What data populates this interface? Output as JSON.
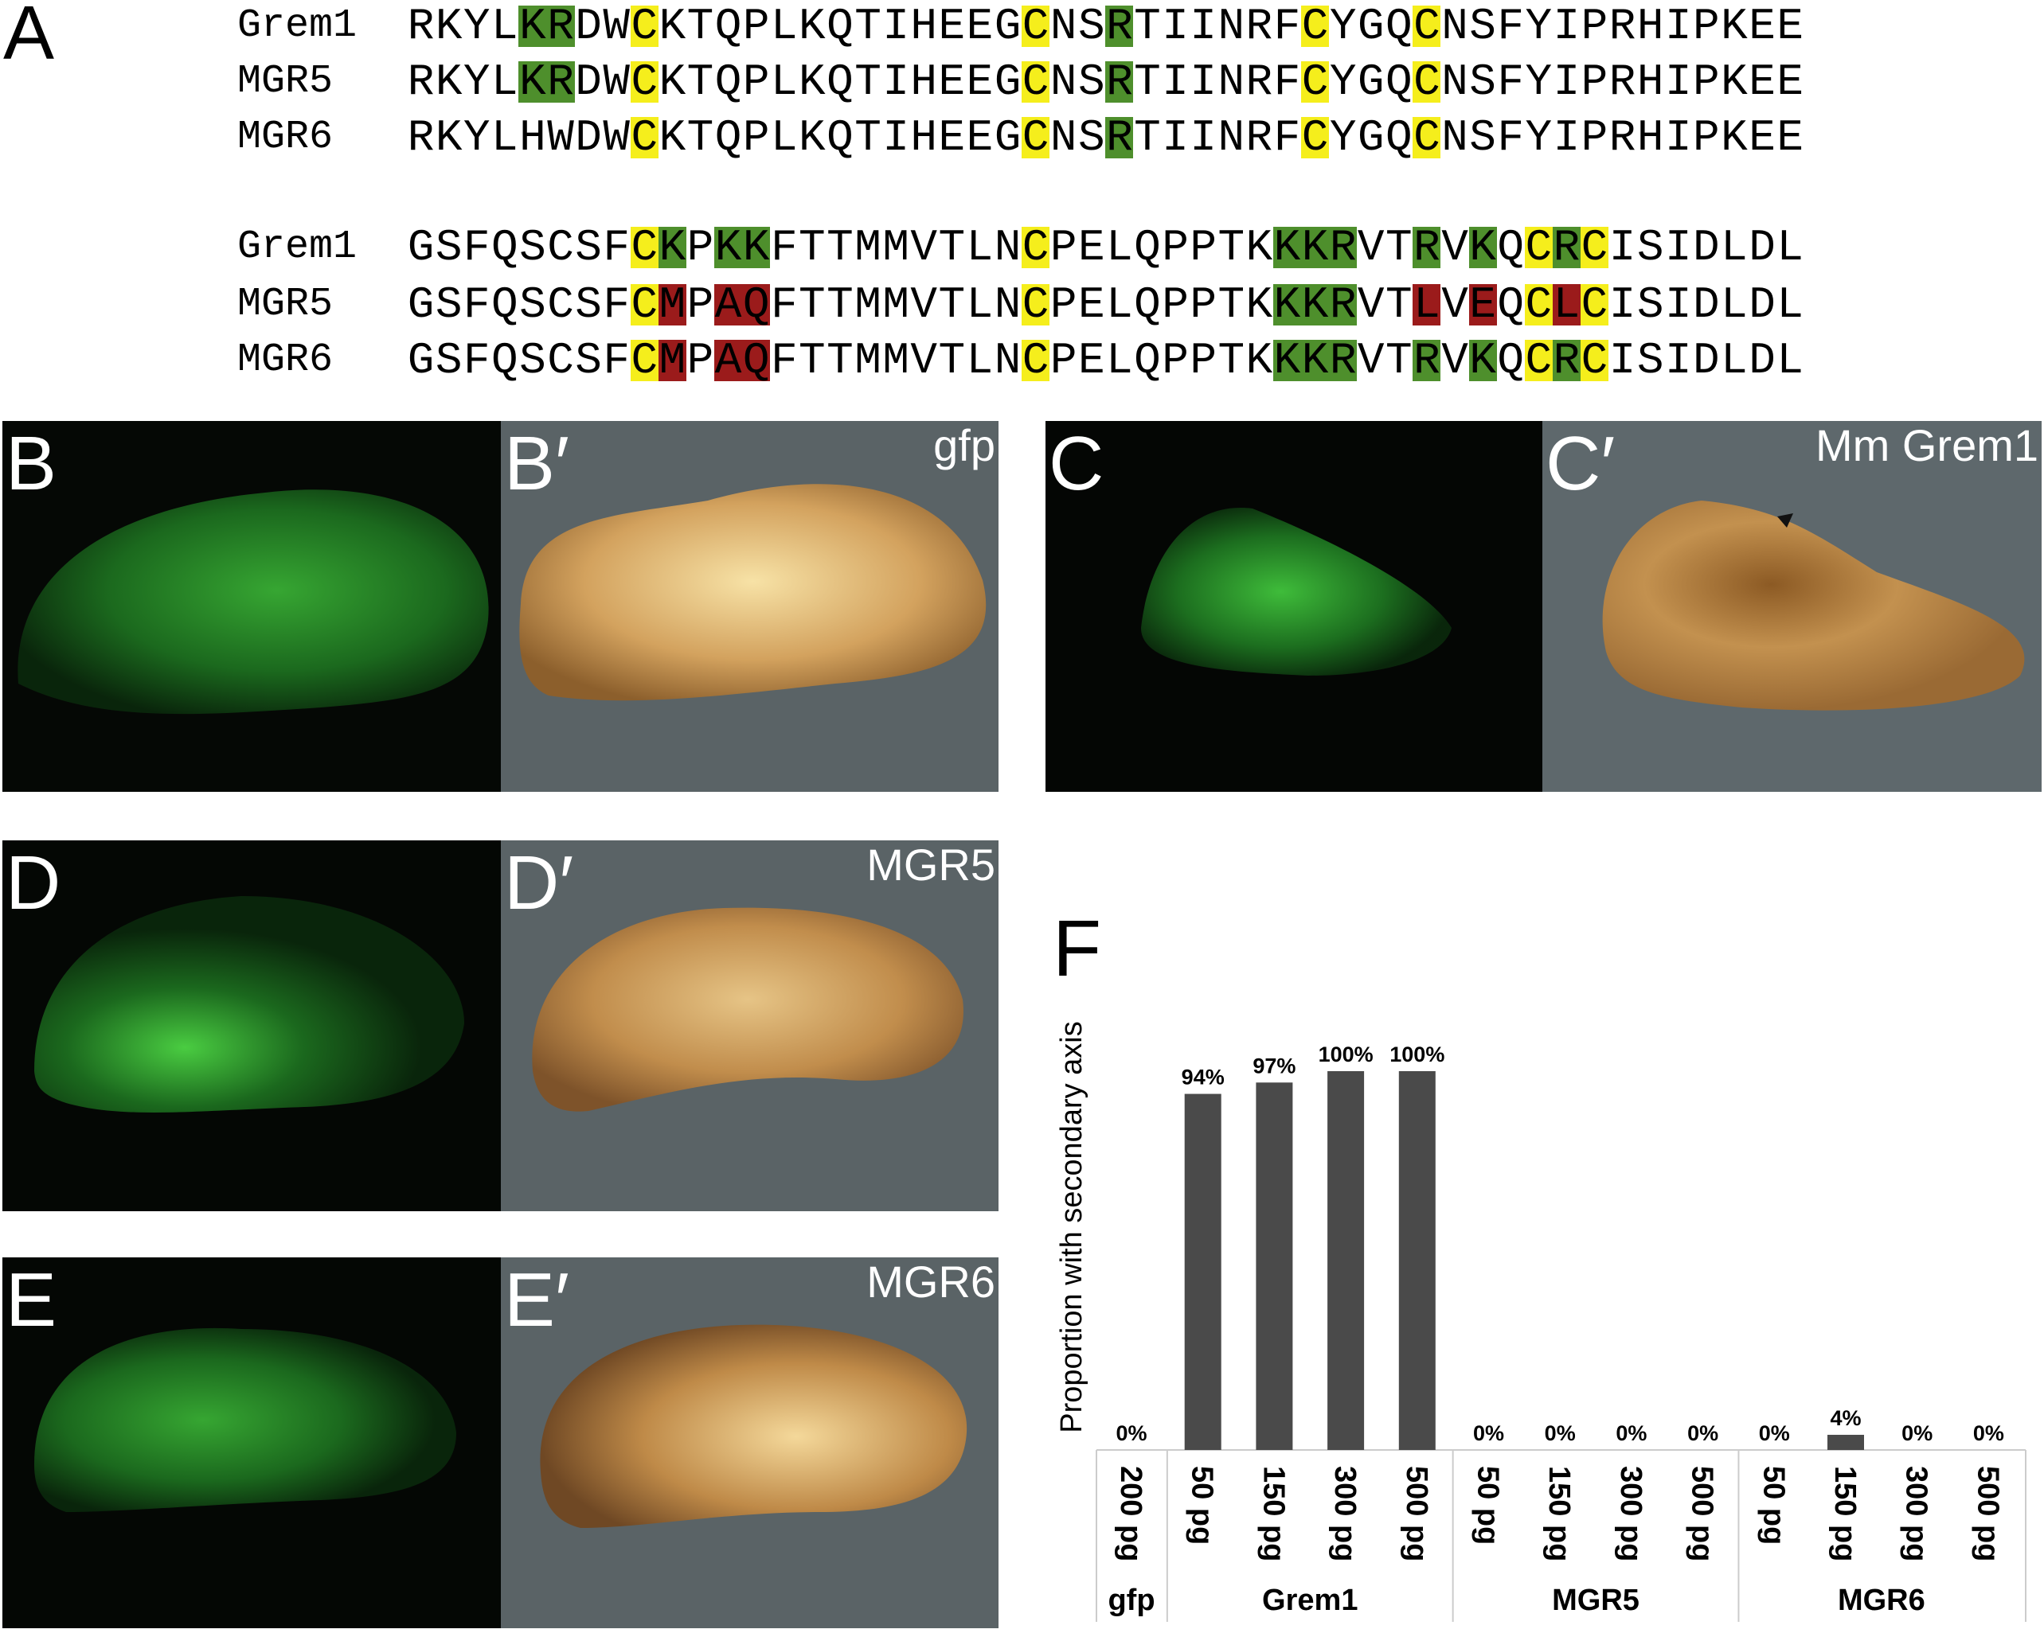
{
  "colors": {
    "conserved_cys": "#f5ee1c",
    "basic": "#4e8f2c",
    "mutated": "#9b1b1b"
  },
  "panel_a": {
    "label": "A",
    "legend_codes": {
      "Y": "conserved_cys",
      "G": "basic",
      "R": "mutated"
    },
    "blocks": [
      {
        "rows": [
          {
            "name": "Grem1",
            "seq": "RKYLKRDWCKTQPLKQTIHEEGCNSRTIINRFCYGQCNSFYIPRHIPKEE",
            "marks": "....GG..Y.............Y..G......Y...Y............."
          },
          {
            "name": "MGR5",
            "seq": "RKYLKRDWCKTQPLKQTIHEEGCNSRTIINRFCYGQCNSFYIPRHIPKEE",
            "marks": "....GG..Y.............Y..G......Y...Y............."
          },
          {
            "name": "MGR6",
            "seq": "RKYLHWDWCKTQPLKQTIHEEGCNSRTIINRFCYGQCNSFYIPRHIPKEE",
            "marks": "........Y.............Y..G......Y...Y............."
          }
        ]
      },
      {
        "rows": [
          {
            "name": "Grem1",
            "seq": "GSFQSCSFCKPKKFTTMMVTLNCPELQPPTKKKRVTRVKQCRCISIDLDL",
            "marks": "........YG.GG.........Y........GGG..G.G.YGY......."
          },
          {
            "name": "MGR5",
            "seq": "GSFQSCSFCMPAQFTTMMVTLNCPELQPPTKKKRVTLVEQCLCISIDLDL",
            "marks": "........YR.RR.........Y........GGG..R.R.YRY......."
          },
          {
            "name": "MGR6",
            "seq": "GSFQSCSFCMPAQFTTMMVTLNCPELQPPTKKKRVTRVKQCRCISIDLDL",
            "marks": "........YR.RR.........Y........GGG..G.G.YGY......."
          }
        ]
      }
    ]
  },
  "photos": {
    "b": {
      "label": "B"
    },
    "b_prime": {
      "label": "B′",
      "tag": "gfp"
    },
    "c": {
      "label": "C"
    },
    "c_prime": {
      "label": "C′",
      "tag": "Mm Grem1"
    },
    "d": {
      "label": "D"
    },
    "d_prime": {
      "label": "D′",
      "tag": "MGR5"
    },
    "e": {
      "label": "E"
    },
    "e_prime": {
      "label": "E′",
      "tag": "MGR6"
    }
  },
  "chart_data": {
    "panel_label": "F",
    "type": "bar",
    "ylabel": "Proportion with secondary axis",
    "ylim": [
      0,
      100
    ],
    "grid": false,
    "bar_color": "#4a4a4a",
    "groups": [
      {
        "name": "gfp",
        "categories": [
          "200 pg"
        ],
        "values": [
          0
        ],
        "labels": [
          "0%"
        ]
      },
      {
        "name": "Grem1",
        "categories": [
          "50 pg",
          "150 pg",
          "300 pg",
          "500 pg"
        ],
        "values": [
          94,
          97,
          100,
          100
        ],
        "labels": [
          "94%",
          "97%",
          "100%",
          "100%"
        ]
      },
      {
        "name": "MGR5",
        "categories": [
          "50 pg",
          "150 pg",
          "300 pg",
          "500 pg"
        ],
        "values": [
          0,
          0,
          0,
          0
        ],
        "labels": [
          "0%",
          "0%",
          "0%",
          "0%"
        ]
      },
      {
        "name": "MGR6",
        "categories": [
          "50 pg",
          "150 pg",
          "300 pg",
          "500 pg"
        ],
        "values": [
          0,
          4,
          0,
          0
        ],
        "labels": [
          "0%",
          "4%",
          "0%",
          "0%"
        ]
      }
    ]
  }
}
